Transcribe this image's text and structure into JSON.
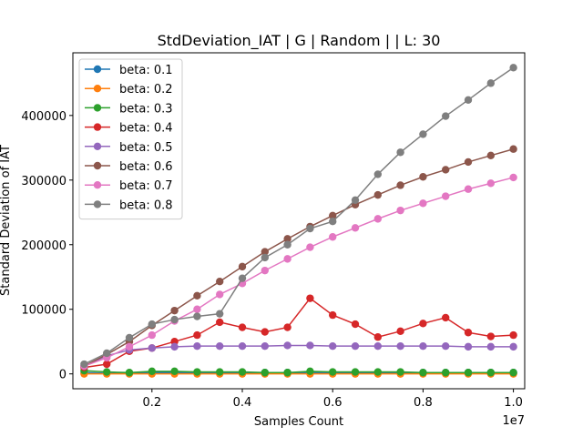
{
  "chart_data": {
    "type": "line",
    "title": "StdDeviation_IAT  | G | Random |  | L: 30",
    "xlabel": "Samples Count",
    "ylabel": "Standard Deviation of IAT",
    "x_offset_text": "1e7",
    "xlim": [
      250000,
      10250000
    ],
    "ylim": [
      -23000,
      497000
    ],
    "x_ticks": [
      2000000,
      4000000,
      6000000,
      8000000,
      10000000
    ],
    "x_tick_labels": [
      "0.2",
      "0.4",
      "0.6",
      "0.8",
      "1.0"
    ],
    "y_ticks": [
      0,
      100000,
      200000,
      300000,
      400000
    ],
    "y_tick_labels": [
      "0",
      "100000",
      "200000",
      "300000",
      "400000"
    ],
    "grid": false,
    "legend_position": "upper-left",
    "x": [
      500000,
      1000000,
      1500000,
      2000000,
      2500000,
      3000000,
      3500000,
      4000000,
      4500000,
      5000000,
      5500000,
      6000000,
      6500000,
      7000000,
      7500000,
      8000000,
      8500000,
      9000000,
      9500000,
      10000000
    ],
    "series": [
      {
        "name": "beta: 0.1",
        "color": "#1f77b4",
        "values": [
          2000,
          1000,
          1500,
          2000,
          2000,
          2000,
          2000,
          2000,
          2000,
          2000,
          2000,
          2000,
          2000,
          2000,
          2000,
          2000,
          2000,
          2000,
          2000,
          2000
        ]
      },
      {
        "name": "beta: 0.2",
        "color": "#ff7f0e",
        "values": [
          0,
          0,
          0,
          0,
          0,
          0,
          0,
          0,
          0,
          0,
          0,
          0,
          0,
          0,
          0,
          0,
          0,
          0,
          0,
          0
        ]
      },
      {
        "name": "beta: 0.3",
        "color": "#2ca02c",
        "values": [
          5000,
          3000,
          2000,
          4000,
          4000,
          3000,
          3000,
          3000,
          2000,
          2000,
          4000,
          3000,
          3000,
          3000,
          3000,
          2000,
          2000,
          2000,
          2000,
          2000
        ]
      },
      {
        "name": "beta: 0.4",
        "color": "#d62728",
        "values": [
          10000,
          15000,
          35000,
          40000,
          50000,
          60000,
          80000,
          72000,
          65000,
          72000,
          117000,
          91000,
          77000,
          57000,
          66000,
          78000,
          87000,
          64000,
          58000,
          60000
        ]
      },
      {
        "name": "beta: 0.5",
        "color": "#9467bd",
        "values": [
          12000,
          28000,
          37000,
          40000,
          42000,
          43000,
          43000,
          43000,
          43000,
          44000,
          44000,
          43000,
          43000,
          43000,
          43000,
          43000,
          43000,
          42000,
          42000,
          42000
        ]
      },
      {
        "name": "beta: 0.6",
        "color": "#8c564b",
        "values": [
          12000,
          30000,
          50000,
          75000,
          98000,
          121000,
          143000,
          166000,
          189000,
          209000,
          228000,
          245000,
          262000,
          277000,
          292000,
          305000,
          316000,
          328000,
          338000,
          348000
        ]
      },
      {
        "name": "beta: 0.7",
        "color": "#e377c2",
        "values": [
          12000,
          25000,
          42000,
          60000,
          82000,
          100000,
          123000,
          140000,
          160000,
          178000,
          196000,
          212000,
          226000,
          240000,
          253000,
          264000,
          275000,
          286000,
          295000,
          304000
        ]
      },
      {
        "name": "beta: 0.8",
        "color": "#7f7f7f",
        "values": [
          15000,
          32000,
          56000,
          77000,
          84000,
          89000,
          93000,
          148000,
          180000,
          200000,
          225000,
          236000,
          269000,
          309000,
          343000,
          371000,
          399000,
          424000,
          450000,
          474000
        ]
      }
    ]
  }
}
